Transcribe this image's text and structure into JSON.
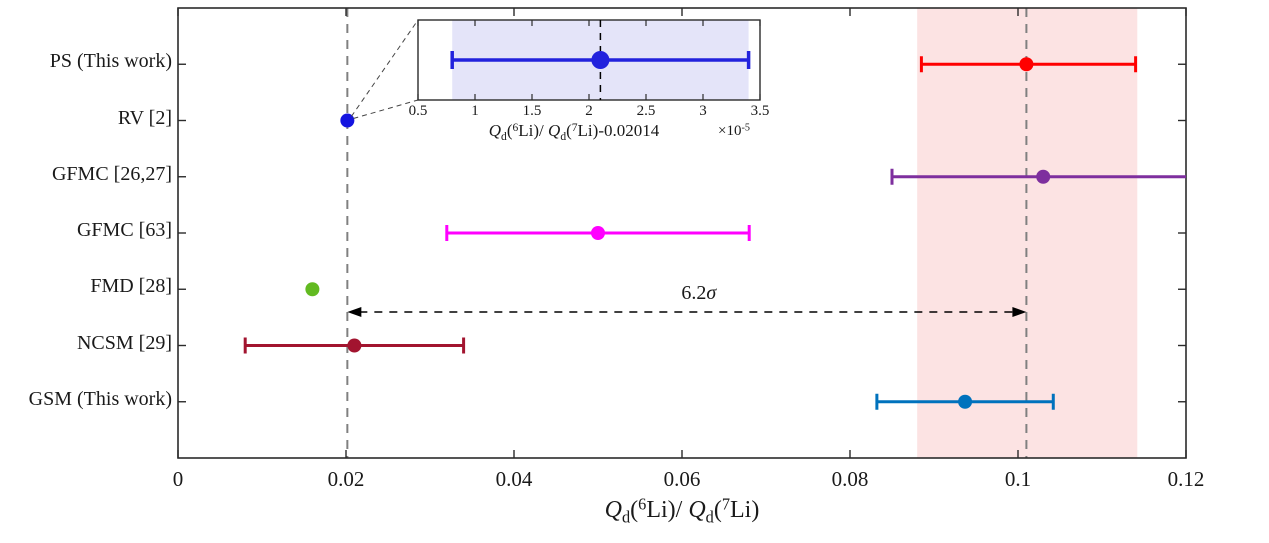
{
  "figure": {
    "background": "#ffffff"
  },
  "chart_data": {
    "type": "scatter",
    "orientation": "horizontal-errorbar",
    "xlabel": "*Q*_{d}(^{6}Li)/ *Q*_{d}(^{7}Li)",
    "xlabel_plain": "Qd(6Li)/ Qd(7Li)",
    "xlim": [
      0,
      0.12
    ],
    "xticks": [
      0,
      0.02,
      0.04,
      0.06,
      0.08,
      0.1,
      0.12
    ],
    "xtick_labels": [
      "0",
      "0.02",
      "0.04",
      "0.06",
      "0.08",
      "0.1",
      "0.12"
    ],
    "categories": [
      "PS (This work)",
      "RV [2]",
      "GFMC [26,27]",
      "GFMC [63]",
      "FMD [28]",
      "NCSM [29]",
      "GSM (This work)"
    ],
    "series": [
      {
        "name": "PS (This work)",
        "value": 0.101,
        "err_lo": 0.0885,
        "err_hi": 0.114,
        "color": "#ff0000",
        "has_errorbar": true,
        "clipped_right": false
      },
      {
        "name": "RV [2]",
        "value": 0.020162,
        "err_lo": 0.020148,
        "err_hi": 0.020175,
        "color": "#1414e0",
        "has_errorbar": false,
        "clipped_right": false
      },
      {
        "name": "GFMC [26,27]",
        "value": 0.103,
        "err_lo": 0.085,
        "err_hi": 0.12,
        "color": "#7e2f9e",
        "has_errorbar": true,
        "clipped_right": true
      },
      {
        "name": "GFMC [63]",
        "value": 0.05,
        "err_lo": 0.032,
        "err_hi": 0.068,
        "color": "#ff00ff",
        "has_errorbar": true,
        "clipped_right": false
      },
      {
        "name": "FMD [28]",
        "value": 0.016,
        "err_lo": null,
        "err_hi": null,
        "color": "#62ba21",
        "has_errorbar": false,
        "clipped_right": false
      },
      {
        "name": "NCSM [29]",
        "value": 0.021,
        "err_lo": 0.008,
        "err_hi": 0.034,
        "color": "#a2142f",
        "has_errorbar": true,
        "clipped_right": false
      },
      {
        "name": "GSM (This work)",
        "value": 0.0937,
        "err_lo": 0.0832,
        "err_hi": 0.1042,
        "color": "#0072bd",
        "has_errorbar": true,
        "clipped_right": false
      }
    ],
    "reference_lines": [
      {
        "x": 0.02016,
        "color": "#808080",
        "style": "dashed"
      },
      {
        "x": 0.101,
        "color": "#808080",
        "style": "dashed"
      }
    ],
    "shaded_band": {
      "from": 0.088,
      "to": 0.1142,
      "color": "#fce3e3"
    },
    "annotation": {
      "label": "6.2*σ*",
      "label_plain": "6.2 sigma",
      "x_from": 0.02016,
      "x_to": 0.101
    },
    "grid": false,
    "legend": "none",
    "inset": {
      "linked_series": "RV [2]",
      "xlim": [
        0.5,
        3.5
      ],
      "xticks": [
        0.5,
        1,
        1.5,
        2,
        2.5,
        3,
        3.5
      ],
      "xtick_labels": [
        "0.5",
        "1",
        "1.5",
        "2",
        "2.5",
        "3",
        "3.5"
      ],
      "xlabel": "*Q*_{d}(^{6}Li)/ *Q*_{d}(^{7}Li)-0.02014",
      "xlabel_plain": "Qd(6Li)/ Qd(7Li)-0.02014",
      "multiplier": "×10^{-5}",
      "point": {
        "value": 2.1,
        "err_lo": 0.8,
        "err_hi": 3.4,
        "color": "#2222dd"
      },
      "band": {
        "from": 0.8,
        "to": 3.4,
        "color": "#e4e4f9"
      },
      "dashed_line_x": 2.1,
      "dashed_line_color": "#000000"
    },
    "colors": {
      "axis": "#2b2b2b",
      "text": "#1a1a1a",
      "arrow": "#000000"
    }
  }
}
